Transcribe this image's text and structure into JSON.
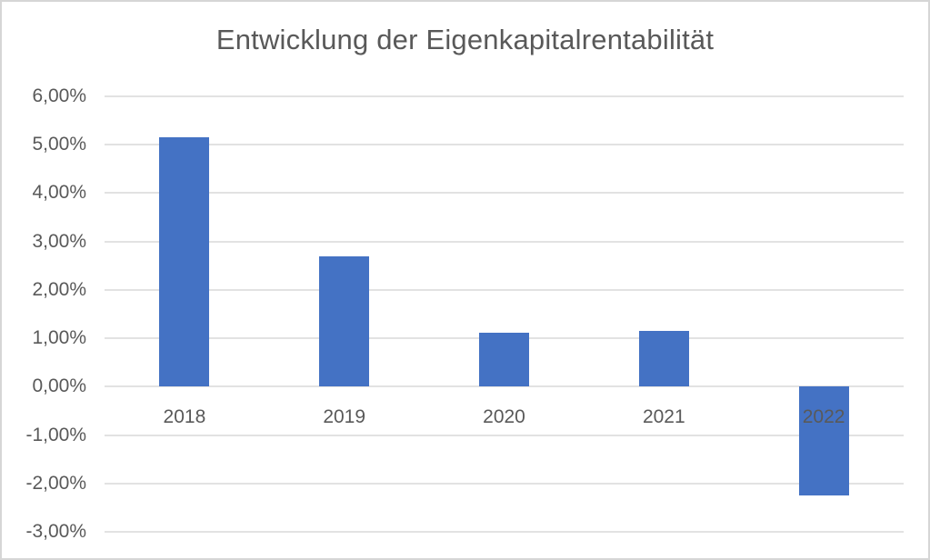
{
  "chart_data": {
    "type": "bar",
    "title": "Entwicklung der Eigenkapitalrentabilität",
    "categories": [
      "2018",
      "2019",
      "2020",
      "2021",
      "2022"
    ],
    "values": [
      5.15,
      2.7,
      1.12,
      1.15,
      -2.25
    ],
    "unit": "%",
    "number_format": "german, two decimals, e.g. 5,15%",
    "xlabel": "",
    "ylabel": "",
    "ylim": [
      -3,
      6
    ],
    "y_tick_step": 1,
    "y_ticks": [
      {
        "value": 6,
        "label": "6,00%"
      },
      {
        "value": 5,
        "label": "5,00%"
      },
      {
        "value": 4,
        "label": "4,00%"
      },
      {
        "value": 3,
        "label": "3,00%"
      },
      {
        "value": 2,
        "label": "2,00%"
      },
      {
        "value": 1,
        "label": "1,00%"
      },
      {
        "value": 0,
        "label": "0,00%"
      },
      {
        "value": -1,
        "label": "-1,00%"
      },
      {
        "value": -2,
        "label": "-2,00%"
      },
      {
        "value": -3,
        "label": "-3,00%"
      }
    ],
    "grid": true,
    "legend": false,
    "data_labels": false,
    "category_labels_position": "below zero axis, 2022 label overlaps its negative bar",
    "colors": {
      "bar": "#4472c4",
      "gridline": "#e2e2e2",
      "text": "#595959",
      "title": "#595959",
      "frame_border": "#d6d6d6",
      "background": "#ffffff"
    }
  }
}
